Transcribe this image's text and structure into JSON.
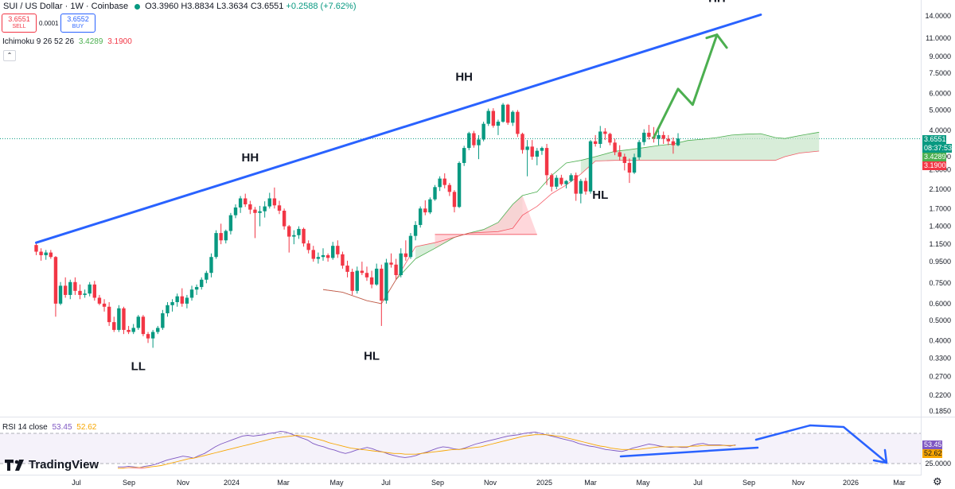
{
  "header": {
    "symbol": "SUI / US Dollar · 1W · Coinbase",
    "ohlc": "O3.3960 H3.8834 L3.3634 C3.6551",
    "change": "+0.2588 (+7.62%)"
  },
  "trade": {
    "sell_price": "3.6551",
    "sell_label": "SELL",
    "spread": "0.0001",
    "buy_price": "3.6552",
    "buy_label": "BUY"
  },
  "indicators": {
    "ichimoku_label": "Ichimoku 9 26 52 26",
    "ichimoku_v1": "3.4289",
    "ichimoku_v2": "3.1900",
    "rsi_label": "RSI 14 close",
    "rsi_v1": "53.45",
    "rsi_v2": "52.62"
  },
  "brand": "TradingView",
  "price_tags": {
    "last_price": "3.6551",
    "countdown": "08:37:53",
    "senkou_a": "3.4289",
    "senkou_b": "3.1900",
    "rsi": "53.45",
    "rsi_ma": "52.62"
  },
  "colors": {
    "up": "#089981",
    "down": "#f23645",
    "trendline": "#2962ff",
    "projection": "#4caf50",
    "rsi": "#7e57c2",
    "rsi_ma": "#f7a600",
    "cloud_bull": "#c8e6c9",
    "cloud_bear": "#ffcdd2"
  },
  "chart_data": {
    "type": "candlestick",
    "scale": "log",
    "y_ticks": [
      "14.0000",
      "11.0000",
      "9.0000",
      "7.5000",
      "6.0000",
      "5.0000",
      "4.0000",
      "3.0000",
      "2.6000",
      "2.1000",
      "1.7000",
      "1.4000",
      "1.1500",
      "0.9500",
      "0.7500",
      "0.6000",
      "0.5000",
      "0.4000",
      "0.3300",
      "0.2700",
      "0.2200",
      "0.1850"
    ],
    "x_ticks": [
      "Jul",
      "Sep",
      "Nov",
      "2024",
      "Mar",
      "May",
      "Jul",
      "Sep",
      "Nov",
      "2025",
      "Mar",
      "May",
      "Jul",
      "Sep",
      "Nov",
      "2026",
      "Mar"
    ],
    "candles": [
      [
        1.14,
        1.17,
        1.02,
        1.06
      ],
      [
        1.06,
        1.1,
        0.96,
        1.02
      ],
      [
        1.02,
        1.08,
        0.97,
        1.05
      ],
      [
        1.05,
        1.08,
        0.98,
        1.0
      ],
      [
        1.0,
        1.01,
        0.52,
        0.6
      ],
      [
        0.6,
        0.76,
        0.59,
        0.73
      ],
      [
        0.73,
        0.8,
        0.64,
        0.66
      ],
      [
        0.66,
        0.78,
        0.63,
        0.76
      ],
      [
        0.76,
        0.8,
        0.66,
        0.69
      ],
      [
        0.69,
        0.74,
        0.63,
        0.66
      ],
      [
        0.66,
        0.7,
        0.64,
        0.67
      ],
      [
        0.67,
        0.76,
        0.65,
        0.74
      ],
      [
        0.74,
        0.77,
        0.62,
        0.64
      ],
      [
        0.64,
        0.66,
        0.59,
        0.6
      ],
      [
        0.6,
        0.63,
        0.55,
        0.58
      ],
      [
        0.58,
        0.61,
        0.47,
        0.49
      ],
      [
        0.49,
        0.52,
        0.44,
        0.45
      ],
      [
        0.45,
        0.59,
        0.44,
        0.57
      ],
      [
        0.57,
        0.58,
        0.43,
        0.45
      ],
      [
        0.45,
        0.47,
        0.43,
        0.44
      ],
      [
        0.44,
        0.48,
        0.43,
        0.46
      ],
      [
        0.46,
        0.53,
        0.45,
        0.52
      ],
      [
        0.52,
        0.53,
        0.42,
        0.43
      ],
      [
        0.43,
        0.44,
        0.39,
        0.41
      ],
      [
        0.41,
        0.45,
        0.37,
        0.44
      ],
      [
        0.44,
        0.47,
        0.43,
        0.46
      ],
      [
        0.46,
        0.56,
        0.45,
        0.54
      ],
      [
        0.54,
        0.61,
        0.52,
        0.59
      ],
      [
        0.59,
        0.63,
        0.55,
        0.61
      ],
      [
        0.61,
        0.67,
        0.58,
        0.65
      ],
      [
        0.65,
        0.71,
        0.58,
        0.6
      ],
      [
        0.6,
        0.66,
        0.57,
        0.64
      ],
      [
        0.64,
        0.73,
        0.62,
        0.7
      ],
      [
        0.7,
        0.74,
        0.66,
        0.72
      ],
      [
        0.72,
        0.8,
        0.7,
        0.78
      ],
      [
        0.78,
        0.86,
        0.75,
        0.84
      ],
      [
        0.84,
        1.04,
        0.8,
        1.0
      ],
      [
        1.0,
        1.34,
        0.98,
        1.3
      ],
      [
        1.3,
        1.44,
        1.15,
        1.2
      ],
      [
        1.2,
        1.35,
        1.16,
        1.33
      ],
      [
        1.33,
        1.62,
        1.28,
        1.58
      ],
      [
        1.58,
        1.78,
        1.53,
        1.72
      ],
      [
        1.72,
        1.95,
        1.62,
        1.9
      ],
      [
        1.9,
        2.0,
        1.73,
        1.78
      ],
      [
        1.78,
        1.85,
        1.6,
        1.68
      ],
      [
        1.68,
        1.73,
        1.23,
        1.62
      ],
      [
        1.62,
        1.75,
        1.4,
        1.65
      ],
      [
        1.65,
        1.84,
        1.54,
        1.74
      ],
      [
        1.74,
        2.02,
        1.7,
        1.9
      ],
      [
        1.9,
        2.14,
        1.7,
        1.76
      ],
      [
        1.76,
        1.85,
        1.6,
        1.66
      ],
      [
        1.66,
        1.7,
        1.35,
        1.4
      ],
      [
        1.4,
        1.42,
        1.05,
        1.25
      ],
      [
        1.25,
        1.34,
        1.15,
        1.27
      ],
      [
        1.27,
        1.4,
        1.22,
        1.36
      ],
      [
        1.36,
        1.38,
        1.12,
        1.16
      ],
      [
        1.16,
        1.2,
        1.04,
        1.08
      ],
      [
        1.08,
        1.13,
        0.95,
        0.98
      ],
      [
        0.98,
        1.05,
        0.93,
        1.0
      ],
      [
        1.0,
        1.1,
        0.96,
        1.02
      ],
      [
        1.02,
        1.04,
        0.95,
        0.99
      ],
      [
        0.99,
        1.18,
        0.97,
        1.13
      ],
      [
        1.13,
        1.2,
        0.99,
        1.03
      ],
      [
        1.03,
        1.06,
        0.88,
        0.91
      ],
      [
        0.91,
        0.96,
        0.8,
        0.85
      ],
      [
        0.85,
        0.88,
        0.66,
        0.69
      ],
      [
        0.69,
        0.9,
        0.67,
        0.86
      ],
      [
        0.86,
        0.95,
        0.82,
        0.84
      ],
      [
        0.84,
        0.9,
        0.77,
        0.8
      ],
      [
        0.8,
        0.86,
        0.71,
        0.74
      ],
      [
        0.74,
        0.93,
        0.73,
        0.88
      ],
      [
        0.88,
        0.92,
        0.47,
        0.62
      ],
      [
        0.62,
        0.98,
        0.6,
        0.94
      ],
      [
        0.94,
        1.04,
        0.89,
        0.92
      ],
      [
        0.92,
        0.98,
        0.78,
        0.82
      ],
      [
        0.82,
        1.1,
        0.8,
        1.04
      ],
      [
        1.04,
        1.2,
        0.96,
        1.0
      ],
      [
        1.0,
        1.3,
        0.98,
        1.26
      ],
      [
        1.26,
        1.48,
        1.2,
        1.42
      ],
      [
        1.42,
        1.74,
        1.38,
        1.7
      ],
      [
        1.7,
        1.86,
        1.58,
        1.63
      ],
      [
        1.63,
        1.92,
        1.6,
        1.88
      ],
      [
        1.88,
        2.2,
        1.85,
        2.15
      ],
      [
        2.15,
        2.42,
        2.06,
        2.36
      ],
      [
        2.36,
        2.5,
        2.12,
        2.2
      ],
      [
        2.2,
        2.25,
        1.95,
        2.04
      ],
      [
        2.04,
        2.08,
        1.63,
        1.73
      ],
      [
        1.73,
        2.85,
        1.71,
        2.8
      ],
      [
        2.8,
        3.38,
        2.71,
        3.3
      ],
      [
        3.3,
        3.94,
        3.22,
        3.88
      ],
      [
        3.88,
        3.98,
        3.31,
        3.4
      ],
      [
        3.4,
        3.8,
        2.92,
        3.62
      ],
      [
        3.62,
        4.4,
        3.55,
        4.3
      ],
      [
        4.3,
        5.08,
        4.2,
        4.95
      ],
      [
        4.95,
        5.1,
        4.12,
        4.21
      ],
      [
        4.21,
        4.5,
        3.8,
        4.4
      ],
      [
        4.4,
        5.4,
        4.35,
        5.3
      ],
      [
        5.3,
        5.35,
        4.25,
        4.35
      ],
      [
        4.35,
        4.98,
        4.2,
        4.9
      ],
      [
        4.9,
        5.0,
        3.72,
        3.85
      ],
      [
        3.85,
        3.9,
        3.1,
        3.23
      ],
      [
        3.23,
        3.6,
        2.42,
        3.35
      ],
      [
        3.35,
        3.6,
        2.9,
        3.0
      ],
      [
        3.0,
        3.3,
        2.73,
        3.2
      ],
      [
        3.2,
        3.35,
        3.06,
        3.3
      ],
      [
        3.3,
        3.45,
        2.2,
        2.45
      ],
      [
        2.45,
        2.5,
        2.05,
        2.16
      ],
      [
        2.16,
        2.45,
        2.1,
        2.38
      ],
      [
        2.38,
        2.46,
        2.18,
        2.22
      ],
      [
        2.22,
        2.32,
        2.12,
        2.3
      ],
      [
        2.3,
        2.5,
        2.27,
        2.45
      ],
      [
        2.45,
        2.52,
        1.85,
        2.0
      ],
      [
        2.0,
        2.35,
        1.8,
        2.3
      ],
      [
        2.3,
        2.38,
        1.98,
        2.05
      ],
      [
        2.05,
        3.6,
        2.0,
        3.55
      ],
      [
        3.55,
        3.8,
        3.35,
        3.45
      ],
      [
        3.45,
        4.2,
        3.3,
        3.95
      ],
      [
        3.95,
        4.1,
        3.6,
        3.85
      ],
      [
        3.85,
        3.9,
        3.4,
        3.5
      ],
      [
        3.5,
        3.65,
        3.05,
        3.15
      ],
      [
        3.15,
        3.4,
        2.88,
        3.0
      ],
      [
        3.0,
        3.1,
        2.58,
        2.8
      ],
      [
        2.8,
        2.94,
        2.25,
        2.52
      ],
      [
        2.52,
        3.1,
        2.48,
        2.98
      ],
      [
        2.98,
        3.6,
        2.9,
        3.52
      ],
      [
        3.52,
        4.05,
        3.4,
        3.9
      ],
      [
        3.9,
        4.25,
        3.62,
        3.73
      ],
      [
        3.73,
        4.15,
        3.5,
        3.65
      ],
      [
        3.65,
        4.0,
        3.4,
        3.8
      ],
      [
        3.8,
        3.95,
        3.45,
        3.65
      ],
      [
        3.65,
        3.8,
        3.4,
        3.55
      ],
      [
        3.55,
        3.7,
        3.1,
        3.4
      ],
      [
        3.4,
        3.88,
        3.36,
        3.66
      ]
    ],
    "ichimoku_span_a": [
      [
        59,
        0.7
      ],
      [
        63,
        0.68
      ],
      [
        68,
        0.62
      ],
      [
        71,
        0.6
      ],
      [
        74,
        0.78
      ],
      [
        78,
        0.98
      ],
      [
        82,
        1.1
      ],
      [
        86,
        1.24
      ],
      [
        89,
        1.3
      ],
      [
        92,
        1.35
      ],
      [
        95,
        1.46
      ],
      [
        98,
        1.78
      ],
      [
        100,
        1.96
      ],
      [
        103,
        2.04
      ],
      [
        106,
        2.44
      ],
      [
        109,
        2.8
      ],
      [
        112,
        2.88
      ],
      [
        115,
        3.0
      ],
      [
        119,
        3.18
      ],
      [
        122,
        3.24
      ],
      [
        125,
        3.31
      ],
      [
        128,
        3.39
      ],
      [
        131,
        3.45
      ],
      [
        134,
        3.58
      ],
      [
        137,
        3.63
      ],
      [
        140,
        3.7
      ],
      [
        143,
        3.8
      ],
      [
        146,
        3.84
      ],
      [
        149,
        3.86
      ],
      [
        152,
        3.7
      ],
      [
        154,
        3.66
      ],
      [
        157,
        3.78
      ],
      [
        161,
        3.92
      ]
    ],
    "ichimoku_span_b": [
      [
        59,
        0.7
      ],
      [
        63,
        0.68
      ],
      [
        68,
        0.62
      ],
      [
        71,
        0.6
      ],
      [
        74,
        0.78
      ],
      [
        78,
        1.12
      ],
      [
        82,
        1.17
      ],
      [
        86,
        1.24
      ],
      [
        89,
        1.3
      ],
      [
        92,
        1.31
      ],
      [
        95,
        1.32
      ],
      [
        98,
        1.37
      ],
      [
        100,
        1.58
      ],
      [
        103,
        1.74
      ],
      [
        106,
        2.0
      ],
      [
        109,
        2.2
      ],
      [
        112,
        2.48
      ],
      [
        115,
        2.86
      ],
      [
        119,
        2.88
      ],
      [
        122,
        2.88
      ],
      [
        125,
        2.88
      ],
      [
        128,
        2.88
      ],
      [
        131,
        2.88
      ],
      [
        134,
        2.88
      ],
      [
        137,
        2.88
      ],
      [
        140,
        2.88
      ],
      [
        143,
        2.88
      ],
      [
        146,
        2.88
      ],
      [
        149,
        2.88
      ],
      [
        152,
        2.88
      ],
      [
        154,
        3.0
      ],
      [
        157,
        3.12
      ],
      [
        161,
        3.19
      ]
    ],
    "ichimoku_flat_b": [
      [
        82,
        1.28
      ],
      [
        103,
        1.28
      ]
    ],
    "trendline": [
      [
        0,
        1.17
      ],
      [
        149,
        14.2
      ]
    ],
    "projection_arrow": [
      [
        127,
        3.7
      ],
      [
        132,
        6.3
      ],
      [
        135,
        5.3
      ],
      [
        140,
        11.4
      ],
      [
        142,
        9.9
      ]
    ],
    "annotations": [
      {
        "text": "HH",
        "at": [
          44,
          2.85
        ]
      },
      {
        "text": "LL",
        "at": [
          21,
          0.29
        ]
      },
      {
        "text": "HL",
        "at": [
          69,
          0.325
        ]
      },
      {
        "text": "HH",
        "at": [
          88,
          6.9
        ]
      },
      {
        "text": "HL",
        "at": [
          116,
          1.89
        ]
      },
      {
        "text": "HH",
        "at": [
          140,
          16.3
        ]
      }
    ],
    "rsi": {
      "levels": [
        70,
        30
      ],
      "y_tick": "25.0000",
      "values": [
        20,
        20,
        21,
        20,
        19,
        21,
        22,
        24,
        27,
        30,
        32,
        34,
        36,
        35,
        33,
        37,
        40,
        45,
        50,
        54,
        57,
        60,
        63,
        66,
        67,
        66,
        67,
        68,
        70,
        71,
        73,
        72,
        69,
        66,
        63,
        60,
        55,
        52,
        50,
        47,
        45,
        42,
        40,
        42,
        45,
        47,
        49,
        47,
        44,
        42,
        39,
        37,
        35,
        34,
        35,
        37,
        40,
        42,
        45,
        48,
        50,
        49,
        47,
        46,
        48,
        51,
        54,
        56,
        58,
        60,
        62,
        64,
        66,
        67,
        68,
        70,
        71,
        72,
        70,
        68,
        66,
        64,
        62,
        60,
        58,
        55,
        53,
        51,
        50,
        48,
        46,
        45,
        44,
        43,
        45,
        48,
        50,
        52,
        54,
        53,
        51,
        50,
        49,
        50,
        49,
        49,
        52,
        54,
        55,
        53,
        53,
        53,
        52,
        51,
        53
      ],
      "ma_values": [
        18,
        18,
        19,
        19,
        19,
        19,
        20,
        21,
        22,
        24,
        26,
        28,
        30,
        32,
        33,
        35,
        37,
        39,
        41,
        43,
        45,
        47,
        49,
        51,
        53,
        55,
        57,
        59,
        61,
        63,
        64,
        65,
        66,
        67,
        66,
        65,
        63,
        61,
        59,
        56,
        54,
        52,
        50,
        48,
        47,
        46,
        45,
        44,
        43,
        42,
        41,
        40,
        40,
        39,
        39,
        39,
        40,
        41,
        42,
        43,
        44,
        45,
        46,
        46,
        47,
        48,
        49,
        50,
        52,
        54,
        56,
        58,
        60,
        62,
        64,
        66,
        67,
        68,
        68,
        68,
        67,
        66,
        65,
        63,
        61,
        59,
        57,
        55,
        53,
        51,
        50,
        48,
        47,
        46,
        46,
        46,
        46,
        47,
        48,
        49,
        50,
        50,
        50,
        50,
        50,
        50,
        51,
        51,
        52,
        52,
        52,
        52,
        52,
        52,
        52
      ]
    }
  }
}
